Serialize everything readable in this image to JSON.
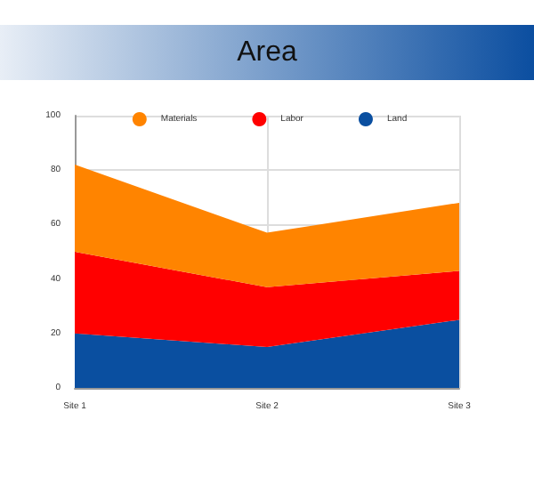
{
  "chart_data": {
    "type": "area",
    "title": "Area",
    "stacked": true,
    "categories": [
      "Site 1",
      "Site 2",
      "Site 3"
    ],
    "series": [
      {
        "name": "Land",
        "color": "#0a4fa0",
        "values": [
          20,
          15,
          25
        ]
      },
      {
        "name": "Labor",
        "color": "#ff0000",
        "values": [
          30,
          22,
          18
        ]
      },
      {
        "name": "Materials",
        "color": "#ff8400",
        "values": [
          32,
          20,
          25
        ]
      }
    ],
    "ylim": [
      0,
      100
    ],
    "yticks": [
      0,
      20,
      40,
      60,
      80,
      100
    ],
    "grid": true,
    "legend": "top"
  }
}
